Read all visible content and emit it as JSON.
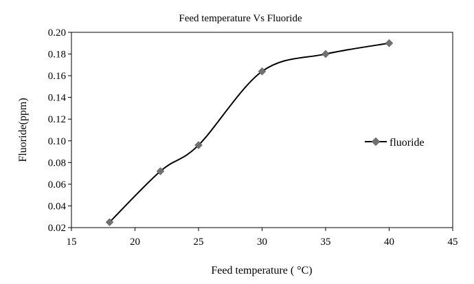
{
  "chart_data": {
    "type": "line",
    "title": "Feed temperature Vs Fluoride",
    "xlabel": "Feed temperature ( °C)",
    "ylabel": "Fluoride(ppm)",
    "xlim": [
      15,
      45
    ],
    "ylim": [
      0.02,
      0.2
    ],
    "x_ticks": [
      "15",
      "20",
      "25",
      "30",
      "35",
      "40",
      "45"
    ],
    "y_ticks": [
      "0.02",
      "0.04",
      "0.06",
      "0.08",
      "0.10",
      "0.12",
      "0.14",
      "0.16",
      "0.18",
      "0.20"
    ],
    "grid": false,
    "smooth": true,
    "legend_position": "right",
    "series": [
      {
        "name": "fluoride",
        "color": "#000000",
        "marker": "diamond",
        "marker_color": "#707070",
        "x": [
          18,
          22,
          25,
          30,
          35,
          40
        ],
        "y": [
          0.025,
          0.072,
          0.096,
          0.164,
          0.18,
          0.19
        ]
      }
    ]
  }
}
